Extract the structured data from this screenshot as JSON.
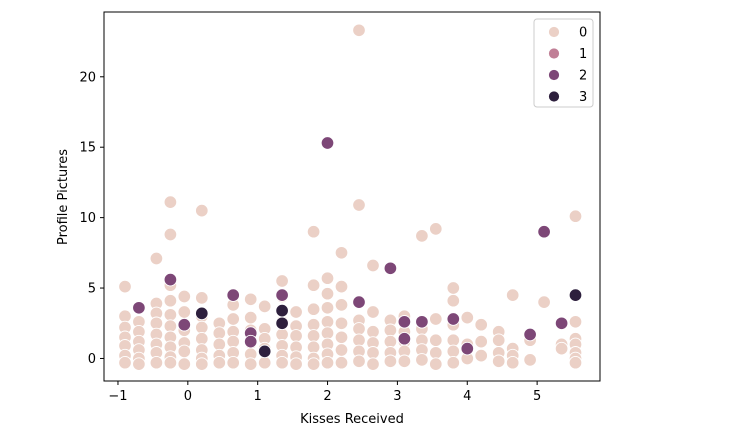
{
  "chart_data": {
    "type": "scatter",
    "title": "",
    "xlabel": "Kisses Received",
    "ylabel": "Profile Pictures",
    "xlim": [
      -1.2,
      5.9
    ],
    "ylim": [
      -1.6,
      24.6
    ],
    "xticks": [
      -1,
      0,
      1,
      2,
      3,
      4,
      5
    ],
    "yticks": [
      0,
      5,
      10,
      15,
      20
    ],
    "grid": false,
    "legend": {
      "placement": "top-right"
    },
    "series": [
      {
        "name": "0",
        "color": "#ebd0c6",
        "points": [
          [
            -0.9,
            5.1
          ],
          [
            -0.9,
            3.0
          ],
          [
            -0.9,
            2.2
          ],
          [
            -0.9,
            1.5
          ],
          [
            -0.9,
            0.9
          ],
          [
            -0.9,
            0.2
          ],
          [
            -0.9,
            -0.3
          ],
          [
            -0.7,
            2.6
          ],
          [
            -0.7,
            1.9
          ],
          [
            -0.7,
            1.2
          ],
          [
            -0.7,
            0.6
          ],
          [
            -0.7,
            0.0
          ],
          [
            -0.7,
            -0.4
          ],
          [
            -0.45,
            7.1
          ],
          [
            -0.45,
            3.9
          ],
          [
            -0.45,
            3.2
          ],
          [
            -0.45,
            2.5
          ],
          [
            -0.45,
            1.7
          ],
          [
            -0.45,
            1.0
          ],
          [
            -0.45,
            0.4
          ],
          [
            -0.45,
            -0.3
          ],
          [
            -0.25,
            11.1
          ],
          [
            -0.25,
            8.8
          ],
          [
            -0.25,
            5.2
          ],
          [
            -0.25,
            4.1
          ],
          [
            -0.25,
            3.1
          ],
          [
            -0.25,
            2.3
          ],
          [
            -0.25,
            1.5
          ],
          [
            -0.25,
            0.8
          ],
          [
            -0.25,
            0.1
          ],
          [
            -0.25,
            -0.3
          ],
          [
            -0.05,
            4.4
          ],
          [
            -0.05,
            3.3
          ],
          [
            -0.05,
            2.0
          ],
          [
            -0.05,
            1.1
          ],
          [
            -0.05,
            0.5
          ],
          [
            -0.05,
            -0.4
          ],
          [
            0.2,
            10.5
          ],
          [
            0.2,
            4.3
          ],
          [
            0.2,
            3.0
          ],
          [
            0.2,
            2.2
          ],
          [
            0.2,
            1.4
          ],
          [
            0.2,
            0.6
          ],
          [
            0.2,
            0.0
          ],
          [
            0.2,
            -0.4
          ],
          [
            0.45,
            2.5
          ],
          [
            0.45,
            1.8
          ],
          [
            0.45,
            1.0
          ],
          [
            0.45,
            0.2
          ],
          [
            0.45,
            -0.3
          ],
          [
            0.65,
            3.8
          ],
          [
            0.65,
            2.8
          ],
          [
            0.65,
            1.9
          ],
          [
            0.65,
            1.2
          ],
          [
            0.65,
            0.4
          ],
          [
            0.65,
            -0.3
          ],
          [
            0.9,
            4.2
          ],
          [
            0.9,
            2.9
          ],
          [
            0.9,
            2.0
          ],
          [
            0.9,
            1.1
          ],
          [
            0.9,
            0.3
          ],
          [
            0.9,
            -0.4
          ],
          [
            1.1,
            3.7
          ],
          [
            1.1,
            2.1
          ],
          [
            1.1,
            1.4
          ],
          [
            1.1,
            0.7
          ],
          [
            1.1,
            -0.3
          ],
          [
            1.35,
            5.5
          ],
          [
            1.35,
            4.4
          ],
          [
            1.35,
            3.4
          ],
          [
            1.35,
            2.6
          ],
          [
            1.35,
            1.7
          ],
          [
            1.35,
            0.9
          ],
          [
            1.35,
            0.2
          ],
          [
            1.35,
            -0.3
          ],
          [
            1.55,
            3.3
          ],
          [
            1.55,
            2.3
          ],
          [
            1.55,
            1.6
          ],
          [
            1.55,
            0.8
          ],
          [
            1.55,
            0.1
          ],
          [
            1.55,
            -0.4
          ],
          [
            1.8,
            9.0
          ],
          [
            1.8,
            5.2
          ],
          [
            1.8,
            3.5
          ],
          [
            1.8,
            2.4
          ],
          [
            1.8,
            1.6
          ],
          [
            1.8,
            0.8
          ],
          [
            1.8,
            0.0
          ],
          [
            1.8,
            -0.4
          ],
          [
            2.0,
            5.7
          ],
          [
            2.0,
            4.6
          ],
          [
            2.0,
            3.6
          ],
          [
            2.0,
            2.6
          ],
          [
            2.0,
            1.8
          ],
          [
            2.0,
            1.0
          ],
          [
            2.0,
            0.3
          ],
          [
            2.0,
            -0.3
          ],
          [
            2.2,
            7.5
          ],
          [
            2.2,
            5.1
          ],
          [
            2.2,
            3.8
          ],
          [
            2.2,
            2.5
          ],
          [
            2.2,
            1.5
          ],
          [
            2.2,
            0.6
          ],
          [
            2.2,
            -0.3
          ],
          [
            2.45,
            23.3
          ],
          [
            2.45,
            10.9
          ],
          [
            2.45,
            2.7
          ],
          [
            2.45,
            2.1
          ],
          [
            2.45,
            1.3
          ],
          [
            2.45,
            0.5
          ],
          [
            2.45,
            -0.2
          ],
          [
            2.65,
            6.6
          ],
          [
            2.65,
            3.3
          ],
          [
            2.65,
            1.9
          ],
          [
            2.65,
            1.1
          ],
          [
            2.65,
            0.4
          ],
          [
            2.65,
            -0.4
          ],
          [
            2.9,
            2.7
          ],
          [
            2.9,
            2.0
          ],
          [
            2.9,
            1.2
          ],
          [
            2.9,
            0.4
          ],
          [
            2.9,
            -0.2
          ],
          [
            3.1,
            3.0
          ],
          [
            3.1,
            1.9
          ],
          [
            3.1,
            1.2
          ],
          [
            3.1,
            0.5
          ],
          [
            3.1,
            -0.2
          ],
          [
            3.35,
            8.7
          ],
          [
            3.35,
            2.1
          ],
          [
            3.35,
            1.3
          ],
          [
            3.35,
            0.6
          ],
          [
            3.35,
            -0.1
          ],
          [
            3.55,
            9.2
          ],
          [
            3.55,
            2.8
          ],
          [
            3.55,
            1.3
          ],
          [
            3.55,
            0.4
          ],
          [
            3.55,
            -0.4
          ],
          [
            3.8,
            5.0
          ],
          [
            3.8,
            4.1
          ],
          [
            3.8,
            2.4
          ],
          [
            3.8,
            1.3
          ],
          [
            3.8,
            0.5
          ],
          [
            3.8,
            -0.3
          ],
          [
            4.0,
            2.9
          ],
          [
            4.0,
            1.0
          ],
          [
            4.0,
            0.0
          ],
          [
            4.2,
            2.4
          ],
          [
            4.2,
            1.2
          ],
          [
            4.2,
            0.2
          ],
          [
            4.45,
            1.9
          ],
          [
            4.45,
            1.3
          ],
          [
            4.45,
            0.4
          ],
          [
            4.45,
            -0.2
          ],
          [
            4.65,
            4.5
          ],
          [
            4.65,
            0.7
          ],
          [
            4.65,
            0.2
          ],
          [
            4.65,
            -0.3
          ],
          [
            4.9,
            1.3
          ],
          [
            4.9,
            -0.1
          ],
          [
            5.1,
            4.0
          ],
          [
            5.35,
            1.0
          ],
          [
            5.35,
            0.7
          ],
          [
            5.55,
            10.1
          ],
          [
            5.55,
            2.6
          ],
          [
            5.55,
            1.4
          ],
          [
            5.55,
            1.0
          ],
          [
            5.55,
            0.4
          ],
          [
            5.55,
            0.0
          ],
          [
            5.55,
            -0.3
          ]
        ]
      },
      {
        "name": "1",
        "color": "#c07f96",
        "points": []
      },
      {
        "name": "2",
        "color": "#7d4777",
        "points": [
          [
            -0.7,
            3.6
          ],
          [
            -0.25,
            5.6
          ],
          [
            -0.05,
            2.4
          ],
          [
            0.65,
            4.5
          ],
          [
            0.9,
            1.8
          ],
          [
            0.9,
            1.2
          ],
          [
            1.35,
            4.5
          ],
          [
            2.0,
            15.3
          ],
          [
            2.45,
            4.0
          ],
          [
            2.9,
            6.4
          ],
          [
            3.1,
            2.6
          ],
          [
            3.1,
            1.4
          ],
          [
            3.35,
            2.6
          ],
          [
            3.8,
            2.8
          ],
          [
            4.0,
            0.7
          ],
          [
            4.9,
            1.7
          ],
          [
            5.1,
            9.0
          ],
          [
            5.35,
            2.5
          ]
        ]
      },
      {
        "name": "3",
        "color": "#2d1f3d",
        "points": [
          [
            0.2,
            3.2
          ],
          [
            1.1,
            0.5
          ],
          [
            1.35,
            3.4
          ],
          [
            1.35,
            2.5
          ],
          [
            5.55,
            4.5
          ]
        ]
      }
    ]
  }
}
